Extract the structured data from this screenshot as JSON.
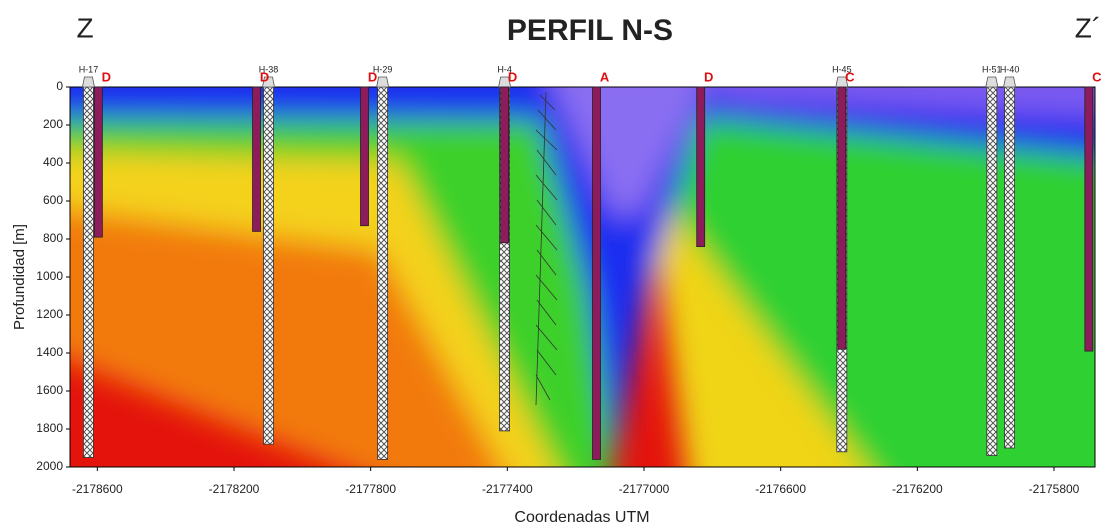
{
  "chart_data": {
    "type": "section",
    "title": "PERFIL N-S",
    "left_label": "Z",
    "right_label": "Z´",
    "x_label": "Coordenadas UTM",
    "y_label": "Profundidad [m]",
    "xlim": [
      -2178680,
      -2175680
    ],
    "ylim": [
      0,
      2000
    ],
    "y_inverted": true,
    "xticks": [
      -2178600,
      -2178200,
      -2177800,
      -2177400,
      -2177000,
      -2176600,
      -2176200,
      -2175800
    ],
    "yticks": [
      0,
      200,
      400,
      600,
      800,
      1000,
      1200,
      1400,
      1600,
      1800,
      2000
    ],
    "wells": [
      {
        "name": "H-17",
        "x": -2178626,
        "depth": 1950
      },
      {
        "name": "H-38",
        "x": -2178099,
        "depth": 1880
      },
      {
        "name": "H-29",
        "x": -2177765,
        "depth": 1960
      },
      {
        "name": "H-4",
        "x": -2177408,
        "depth": 1810
      },
      {
        "name": "H-45",
        "x": -2176421,
        "depth": 1920
      },
      {
        "name": "H-51",
        "x": -2175982,
        "depth": 1940
      },
      {
        "name": "H-40",
        "x": -2175930,
        "depth": 1900
      }
    ],
    "profiles": [
      {
        "label": "D",
        "x": -2178597,
        "depth": 790
      },
      {
        "label": "D",
        "x": -2178134,
        "depth": 760
      },
      {
        "label": "D",
        "x": -2177818,
        "depth": 730
      },
      {
        "label": "D",
        "x": -2177408,
        "depth": 820
      },
      {
        "label": "A",
        "x": -2177139,
        "depth": 1960
      },
      {
        "label": "D",
        "x": -2176834,
        "depth": 840
      },
      {
        "label": "C",
        "x": -2176421,
        "depth": 1380
      },
      {
        "label": "C",
        "x": -2175698,
        "depth": 1390
      }
    ],
    "profile_color": "#8e1b5c",
    "label_color": "#e01010"
  }
}
